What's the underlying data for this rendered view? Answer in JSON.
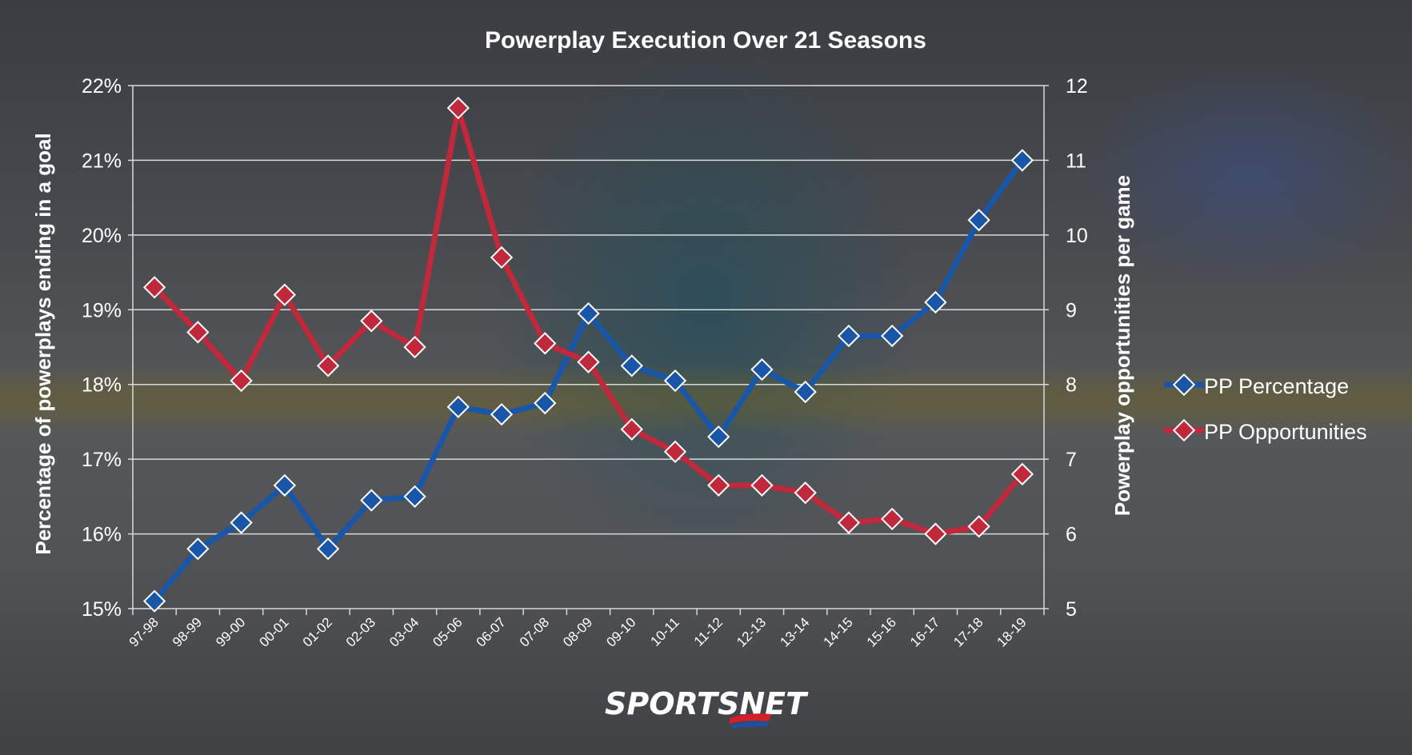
{
  "chart_data": {
    "type": "line",
    "title": "Powerplay Execution Over 21 Seasons",
    "categories": [
      "97-98",
      "98-99",
      "99-00",
      "00-01",
      "01-02",
      "02-03",
      "03-04",
      "05-06",
      "06-07",
      "07-08",
      "08-09",
      "09-10",
      "10-11",
      "11-12",
      "12-13",
      "13-14",
      "14-15",
      "15-16",
      "16-17",
      "17-18",
      "18-19"
    ],
    "y_left": {
      "label": "Percentage of powerplays ending in a goal",
      "range": [
        15,
        22
      ],
      "ticks": [
        "15%",
        "16%",
        "17%",
        "18%",
        "19%",
        "20%",
        "21%",
        "22%"
      ]
    },
    "y_right": {
      "label": "Powerplay opportunities per game",
      "range": [
        5,
        12
      ],
      "ticks": [
        "5",
        "6",
        "7",
        "8",
        "9",
        "10",
        "11",
        "12"
      ]
    },
    "series": [
      {
        "name": "PP Percentage",
        "axis": "left",
        "color": "#1a56a8",
        "values": [
          15.1,
          15.8,
          16.15,
          16.65,
          15.8,
          16.45,
          16.5,
          17.7,
          17.6,
          17.75,
          18.95,
          18.25,
          18.05,
          17.3,
          18.2,
          17.9,
          18.65,
          18.65,
          19.1,
          20.2,
          21.0
        ]
      },
      {
        "name": "PP Opportunities",
        "axis": "right",
        "color": "#c0283b",
        "values": [
          9.3,
          8.7,
          8.05,
          9.2,
          8.25,
          8.85,
          8.5,
          11.7,
          9.7,
          8.55,
          8.3,
          7.4,
          7.1,
          6.65,
          6.65,
          6.55,
          6.15,
          6.2,
          6.0,
          6.1,
          6.8
        ]
      }
    ],
    "grid": true,
    "legend": "right"
  },
  "logo": {
    "text": "SPORTSNET",
    "accent": "#d21f2b",
    "accent2": "#1f4fa0"
  }
}
